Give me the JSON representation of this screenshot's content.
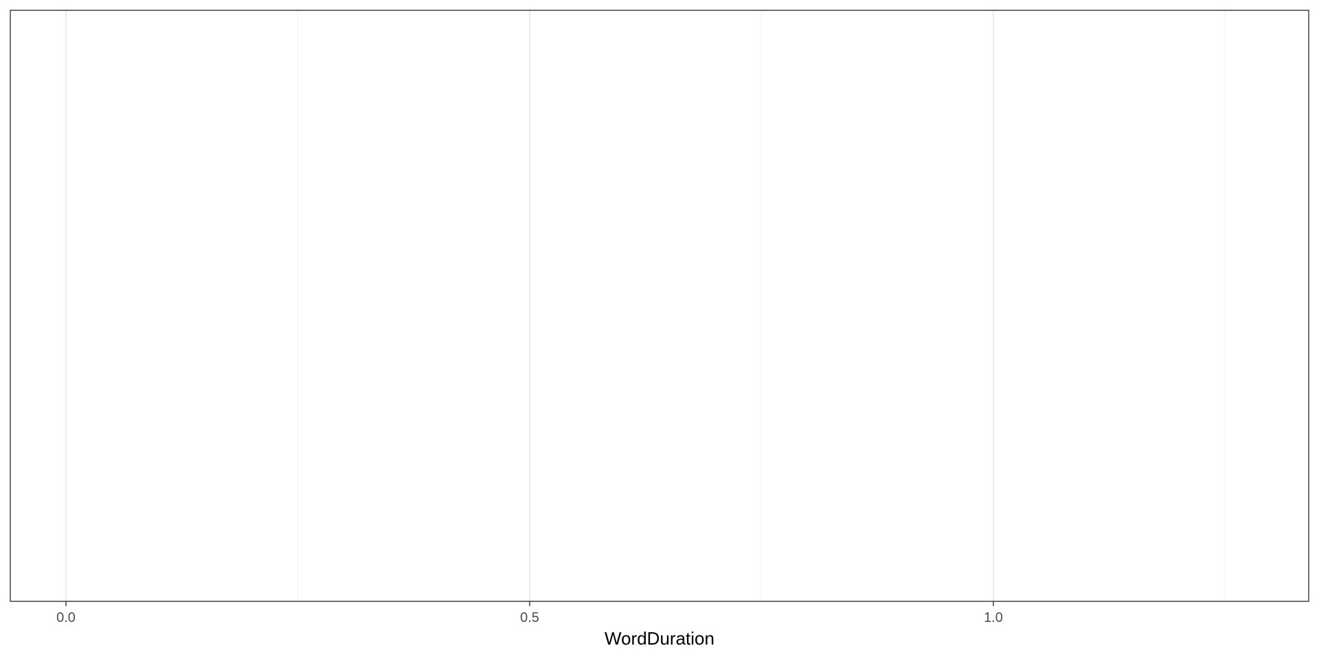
{
  "chart_data": {
    "type": "scatter",
    "xlabel": "WordDuration",
    "ylabel": "",
    "xlim": [
      -0.06,
      1.34
    ],
    "x_ticks": [
      {
        "value": 0.0,
        "label": "0.0"
      },
      {
        "value": 0.5,
        "label": "0.5"
      },
      {
        "value": 1.0,
        "label": "1.0"
      }
    ],
    "x_minor_ticks": [
      0.25,
      0.75,
      1.25
    ],
    "y_ticks": [],
    "series": [],
    "grid": true,
    "legend": "none"
  },
  "colors": {
    "background": "#ffffff",
    "panel_border": "#333333",
    "major_grid": "#ebebeb",
    "minor_grid": "#f2f2f2",
    "tick_label": "#4d4d4d",
    "axis_title": "#000000"
  }
}
